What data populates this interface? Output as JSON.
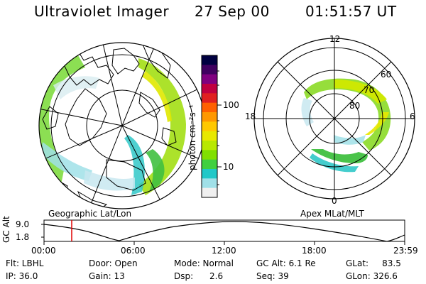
{
  "header": {
    "instrument": "Ultraviolet Imager",
    "date": "27 Sep 00",
    "time": "01:51:57 UT"
  },
  "geo_panel": {
    "caption": "Geographic Lat/Lon"
  },
  "colorbar": {
    "unit_label": "photon cm⁻²s⁻¹",
    "tick_100": "100",
    "tick_10": "10",
    "colors": [
      "#000040",
      "#400060",
      "#800080",
      "#c00040",
      "#e02020",
      "#ff6000",
      "#ff9800",
      "#ffc800",
      "#e8e800",
      "#b8e800",
      "#80e000",
      "#40d040",
      "#20c8c8",
      "#a0e0e8",
      "#f0f0f0"
    ]
  },
  "polar_panel": {
    "caption": "Apex MLat/MLT",
    "mlt_12": "12",
    "mlt_18": "18",
    "mlt_6": "6",
    "mlt_0": "0",
    "lat_60": "60",
    "lat_70": "70",
    "lat_80": "80"
  },
  "altitude_strip": {
    "axis_label": "GC Alt",
    "y_top": "9.0",
    "y_bottom": "1.8",
    "x_ticks": [
      "00:00",
      "06:00",
      "12:00",
      "18:00",
      "23:59"
    ],
    "marker_color": "#e00000"
  },
  "info": {
    "flt": "Flt: LBHL",
    "ip": "IP: 36.0",
    "door": "Door: Open",
    "gain": "Gain: 13",
    "mode": "Mode: Normal",
    "dsp": "Dsp:      2.6",
    "gcalt": "GC Alt: 6.1 Re",
    "seq": "Seq: 39",
    "glat": "GLat:     83.5",
    "glon": "GLon: 326.6"
  }
}
